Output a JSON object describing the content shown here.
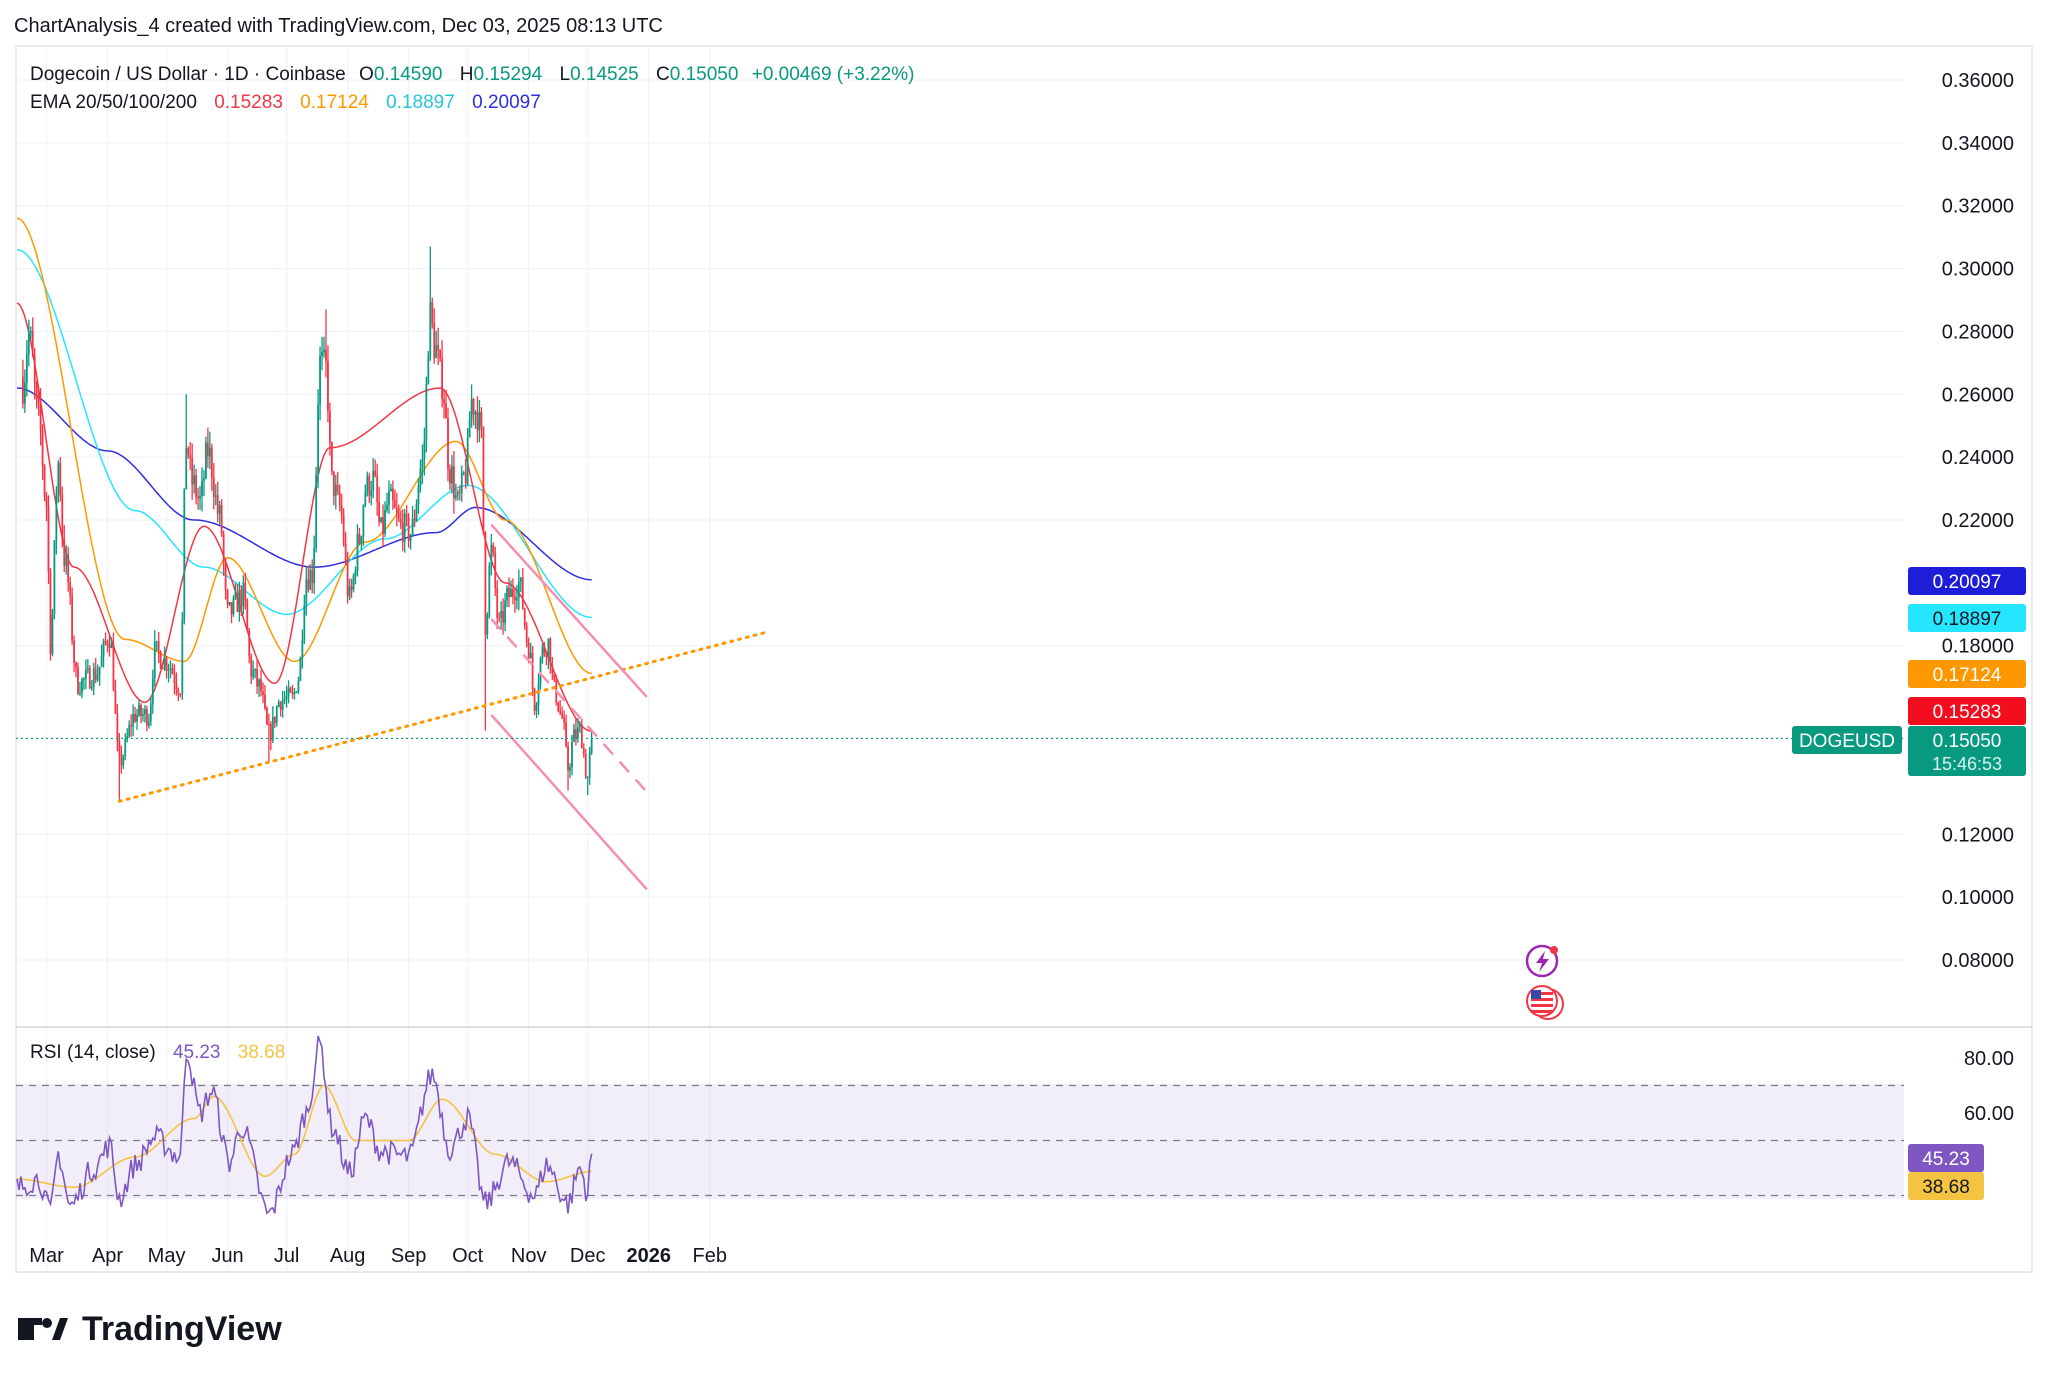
{
  "header": {
    "attribution": "ChartAnalysis_4 created with TradingView.com, Dec 03, 2025 08:13 UTC"
  },
  "legend": {
    "symbol_line": "Dogecoin / US Dollar · 1D · Coinbase",
    "o_label": "O",
    "o_value": "0.14590",
    "h_label": "H",
    "h_value": "0.15294",
    "l_label": "L",
    "l_value": "0.14525",
    "c_label": "C",
    "c_value": "0.15050",
    "change": "+0.00469 (+3.22%)",
    "ema_label": "EMA 20/50/100/200",
    "ema20": "0.15283",
    "ema50": "0.17124",
    "ema100": "0.18897",
    "ema200": "0.20097"
  },
  "rsi_legend": {
    "label": "RSI (14, close)",
    "rsi": "45.23",
    "ma": "38.68"
  },
  "price_badges": {
    "ema200": "0.20097",
    "ema100": "0.18897",
    "ema50": "0.17124",
    "ema20": "0.15283",
    "symbol": "DOGEUSD",
    "last": "0.15050",
    "countdown": "15:46:53"
  },
  "rsi_badges": {
    "rsi": "45.23",
    "ma": "38.68"
  },
  "branding": {
    "logo_text": "TradingView"
  },
  "colors": {
    "up": "#089981",
    "down": "#f23645",
    "ema20": "#f23645",
    "ema50": "#ff9800",
    "ema100": "#26e5ff",
    "ema200": "#2f2fe0",
    "rsi": "#7e57c2",
    "rsi_ma": "#f5c342",
    "channel": "#f48fb1",
    "trend": "#ff9800"
  },
  "chart_data": {
    "type": "candlestick",
    "symbol": "DOGEUSD",
    "price_axis": {
      "ticks": [
        "0.36000",
        "0.34000",
        "0.32000",
        "0.30000",
        "0.28000",
        "0.26000",
        "0.24000",
        "0.22000",
        "0.18000",
        "0.12000",
        "0.10000",
        "0.08000"
      ],
      "ylim": [
        0.07,
        0.37
      ]
    },
    "time_axis": {
      "ticks": [
        "Mar",
        "Apr",
        "May",
        "Jun",
        "Jul",
        "Aug",
        "Sep",
        "Oct",
        "Nov",
        "Dec",
        "2026",
        "Feb"
      ]
    },
    "rsi_axis": {
      "ticks": [
        "80.00",
        "60.00"
      ],
      "ylim": [
        15,
        90
      ],
      "bands": [
        70,
        50,
        30
      ]
    },
    "anchors": [
      {
        "date": "2025-02-17",
        "price": 0.263
      },
      {
        "date": "2025-02-20",
        "price": 0.279
      },
      {
        "date": "2025-02-25",
        "price": 0.252
      },
      {
        "date": "2025-03-01",
        "price": 0.225
      },
      {
        "date": "2025-03-03",
        "price": 0.181
      },
      {
        "date": "2025-03-07",
        "price": 0.238
      },
      {
        "date": "2025-03-10",
        "price": 0.208
      },
      {
        "date": "2025-03-17",
        "price": 0.168
      },
      {
        "date": "2025-03-26",
        "price": 0.171
      },
      {
        "date": "2025-04-02",
        "price": 0.183
      },
      {
        "date": "2025-04-07",
        "price": 0.143
      },
      {
        "date": "2025-04-15",
        "price": 0.158
      },
      {
        "date": "2025-04-22",
        "price": 0.158
      },
      {
        "date": "2025-04-25",
        "price": 0.178
      },
      {
        "date": "2025-05-01",
        "price": 0.175
      },
      {
        "date": "2025-05-08",
        "price": 0.167
      },
      {
        "date": "2025-05-11",
        "price": 0.245
      },
      {
        "date": "2025-05-14",
        "price": 0.232
      },
      {
        "date": "2025-05-18",
        "price": 0.226
      },
      {
        "date": "2025-05-22",
        "price": 0.242
      },
      {
        "date": "2025-05-28",
        "price": 0.221
      },
      {
        "date": "2025-06-01",
        "price": 0.19
      },
      {
        "date": "2025-06-09",
        "price": 0.196
      },
      {
        "date": "2025-06-13",
        "price": 0.172
      },
      {
        "date": "2025-06-17",
        "price": 0.167
      },
      {
        "date": "2025-06-22",
        "price": 0.152
      },
      {
        "date": "2025-06-28",
        "price": 0.163
      },
      {
        "date": "2025-07-04",
        "price": 0.163
      },
      {
        "date": "2025-07-07",
        "price": 0.17
      },
      {
        "date": "2025-07-11",
        "price": 0.202
      },
      {
        "date": "2025-07-14",
        "price": 0.203
      },
      {
        "date": "2025-07-18",
        "price": 0.27
      },
      {
        "date": "2025-07-21",
        "price": 0.268
      },
      {
        "date": "2025-07-24",
        "price": 0.232
      },
      {
        "date": "2025-07-28",
        "price": 0.224
      },
      {
        "date": "2025-08-02",
        "price": 0.195
      },
      {
        "date": "2025-08-07",
        "price": 0.214
      },
      {
        "date": "2025-08-10",
        "price": 0.23
      },
      {
        "date": "2025-08-14",
        "price": 0.233
      },
      {
        "date": "2025-08-18",
        "price": 0.216
      },
      {
        "date": "2025-08-22",
        "price": 0.226
      },
      {
        "date": "2025-08-28",
        "price": 0.218
      },
      {
        "date": "2025-09-02",
        "price": 0.216
      },
      {
        "date": "2025-09-08",
        "price": 0.238
      },
      {
        "date": "2025-09-12",
        "price": 0.285
      },
      {
        "date": "2025-09-14",
        "price": 0.276
      },
      {
        "date": "2025-09-18",
        "price": 0.264
      },
      {
        "date": "2025-09-22",
        "price": 0.236
      },
      {
        "date": "2025-09-26",
        "price": 0.225
      },
      {
        "date": "2025-09-30",
        "price": 0.235
      },
      {
        "date": "2025-10-03",
        "price": 0.258
      },
      {
        "date": "2025-10-06",
        "price": 0.254
      },
      {
        "date": "2025-10-08",
        "price": 0.246
      },
      {
        "date": "2025-10-10",
        "price": 0.187
      },
      {
        "date": "2025-10-13",
        "price": 0.21
      },
      {
        "date": "2025-10-17",
        "price": 0.186
      },
      {
        "date": "2025-10-22",
        "price": 0.196
      },
      {
        "date": "2025-10-27",
        "price": 0.2
      },
      {
        "date": "2025-11-01",
        "price": 0.18
      },
      {
        "date": "2025-11-04",
        "price": 0.162
      },
      {
        "date": "2025-11-08",
        "price": 0.178
      },
      {
        "date": "2025-11-11",
        "price": 0.181
      },
      {
        "date": "2025-11-14",
        "price": 0.166
      },
      {
        "date": "2025-11-18",
        "price": 0.157
      },
      {
        "date": "2025-11-21",
        "price": 0.141
      },
      {
        "date": "2025-11-24",
        "price": 0.151
      },
      {
        "date": "2025-11-27",
        "price": 0.153
      },
      {
        "date": "2025-12-01",
        "price": 0.138
      },
      {
        "date": "2025-12-03",
        "price": 0.1505
      }
    ],
    "ema_anchors": {
      "ema20": [
        {
          "date": "2025-02-14",
          "price": 0.289
        },
        {
          "date": "2025-03-15",
          "price": 0.205
        },
        {
          "date": "2025-04-20",
          "price": 0.162
        },
        {
          "date": "2025-05-20",
          "price": 0.218
        },
        {
          "date": "2025-06-25",
          "price": 0.168
        },
        {
          "date": "2025-07-23",
          "price": 0.243
        },
        {
          "date": "2025-09-17",
          "price": 0.262
        },
        {
          "date": "2025-10-20",
          "price": 0.2
        },
        {
          "date": "2025-12-03",
          "price": 0.1528
        }
      ],
      "ema50": [
        {
          "date": "2025-02-14",
          "price": 0.316
        },
        {
          "date": "2025-04-10",
          "price": 0.182
        },
        {
          "date": "2025-05-10",
          "price": 0.175
        },
        {
          "date": "2025-06-01",
          "price": 0.208
        },
        {
          "date": "2025-07-05",
          "price": 0.175
        },
        {
          "date": "2025-08-10",
          "price": 0.213
        },
        {
          "date": "2025-09-25",
          "price": 0.245
        },
        {
          "date": "2025-10-20",
          "price": 0.22
        },
        {
          "date": "2025-12-03",
          "price": 0.1712
        }
      ],
      "ema100": [
        {
          "date": "2025-02-14",
          "price": 0.306
        },
        {
          "date": "2025-04-15",
          "price": 0.223
        },
        {
          "date": "2025-05-20",
          "price": 0.205
        },
        {
          "date": "2025-07-01",
          "price": 0.19
        },
        {
          "date": "2025-08-20",
          "price": 0.214
        },
        {
          "date": "2025-10-01",
          "price": 0.231
        },
        {
          "date": "2025-12-03",
          "price": 0.189
        }
      ],
      "ema200": [
        {
          "date": "2025-02-14",
          "price": 0.262
        },
        {
          "date": "2025-04-01",
          "price": 0.242
        },
        {
          "date": "2025-05-15",
          "price": 0.22
        },
        {
          "date": "2025-07-15",
          "price": 0.205
        },
        {
          "date": "2025-09-15",
          "price": 0.216
        },
        {
          "date": "2025-10-05",
          "price": 0.224
        },
        {
          "date": "2025-12-03",
          "price": 0.201
        }
      ]
    },
    "rsi_anchors": [
      {
        "date": "2025-02-14",
        "v": 33
      },
      {
        "date": "2025-02-25",
        "v": 36
      },
      {
        "date": "2025-03-03",
        "v": 24
      },
      {
        "date": "2025-03-07",
        "v": 45
      },
      {
        "date": "2025-03-13",
        "v": 26
      },
      {
        "date": "2025-03-25",
        "v": 40
      },
      {
        "date": "2025-04-02",
        "v": 48
      },
      {
        "date": "2025-04-07",
        "v": 29
      },
      {
        "date": "2025-04-15",
        "v": 41
      },
      {
        "date": "2025-04-25",
        "v": 51
      },
      {
        "date": "2025-05-08",
        "v": 44
      },
      {
        "date": "2025-05-11",
        "v": 83
      },
      {
        "date": "2025-05-18",
        "v": 60
      },
      {
        "date": "2025-05-24",
        "v": 68
      },
      {
        "date": "2025-06-02",
        "v": 42
      },
      {
        "date": "2025-06-08",
        "v": 55
      },
      {
        "date": "2025-06-22",
        "v": 23
      },
      {
        "date": "2025-07-04",
        "v": 45
      },
      {
        "date": "2025-07-11",
        "v": 60
      },
      {
        "date": "2025-07-18",
        "v": 85
      },
      {
        "date": "2025-07-24",
        "v": 55
      },
      {
        "date": "2025-08-02",
        "v": 38
      },
      {
        "date": "2025-08-10",
        "v": 58
      },
      {
        "date": "2025-08-18",
        "v": 46
      },
      {
        "date": "2025-09-01",
        "v": 44
      },
      {
        "date": "2025-09-13",
        "v": 74
      },
      {
        "date": "2025-09-22",
        "v": 47
      },
      {
        "date": "2025-10-01",
        "v": 58
      },
      {
        "date": "2025-10-10",
        "v": 27
      },
      {
        "date": "2025-10-22",
        "v": 42
      },
      {
        "date": "2025-11-04",
        "v": 30
      },
      {
        "date": "2025-11-10",
        "v": 41
      },
      {
        "date": "2025-11-21",
        "v": 27
      },
      {
        "date": "2025-11-27",
        "v": 40
      },
      {
        "date": "2025-12-01",
        "v": 31
      },
      {
        "date": "2025-12-03",
        "v": 45.2
      }
    ],
    "rsi_ma_anchors": [
      {
        "date": "2025-02-14",
        "v": 36
      },
      {
        "date": "2025-03-15",
        "v": 33
      },
      {
        "date": "2025-04-15",
        "v": 44
      },
      {
        "date": "2025-05-15",
        "v": 58
      },
      {
        "date": "2025-05-25",
        "v": 66
      },
      {
        "date": "2025-06-20",
        "v": 37
      },
      {
        "date": "2025-07-05",
        "v": 45
      },
      {
        "date": "2025-07-20",
        "v": 70
      },
      {
        "date": "2025-08-05",
        "v": 50
      },
      {
        "date": "2025-09-01",
        "v": 50
      },
      {
        "date": "2025-09-18",
        "v": 65
      },
      {
        "date": "2025-10-15",
        "v": 45
      },
      {
        "date": "2025-11-10",
        "v": 35
      },
      {
        "date": "2025-12-03",
        "v": 38.7
      }
    ],
    "trendlines": [
      {
        "name": "support-trendline",
        "style": "dotted",
        "points": [
          {
            "date": "2025-04-07",
            "price": 0.1305
          },
          {
            "date": "2026-03-03",
            "price": 0.1845
          }
        ]
      },
      {
        "name": "channel-upper",
        "style": "solid",
        "points": [
          {
            "date": "2025-10-13",
            "price": 0.2185
          },
          {
            "date": "2025-12-31",
            "price": 0.1637
          }
        ]
      },
      {
        "name": "channel-lower",
        "style": "solid",
        "points": [
          {
            "date": "2025-10-13",
            "price": 0.158
          },
          {
            "date": "2025-12-31",
            "price": 0.1025
          }
        ]
      },
      {
        "name": "channel-mid",
        "style": "dashed",
        "points": [
          {
            "date": "2025-10-13",
            "price": 0.1885
          },
          {
            "date": "2025-12-31",
            "price": 0.1335
          }
        ]
      }
    ]
  }
}
